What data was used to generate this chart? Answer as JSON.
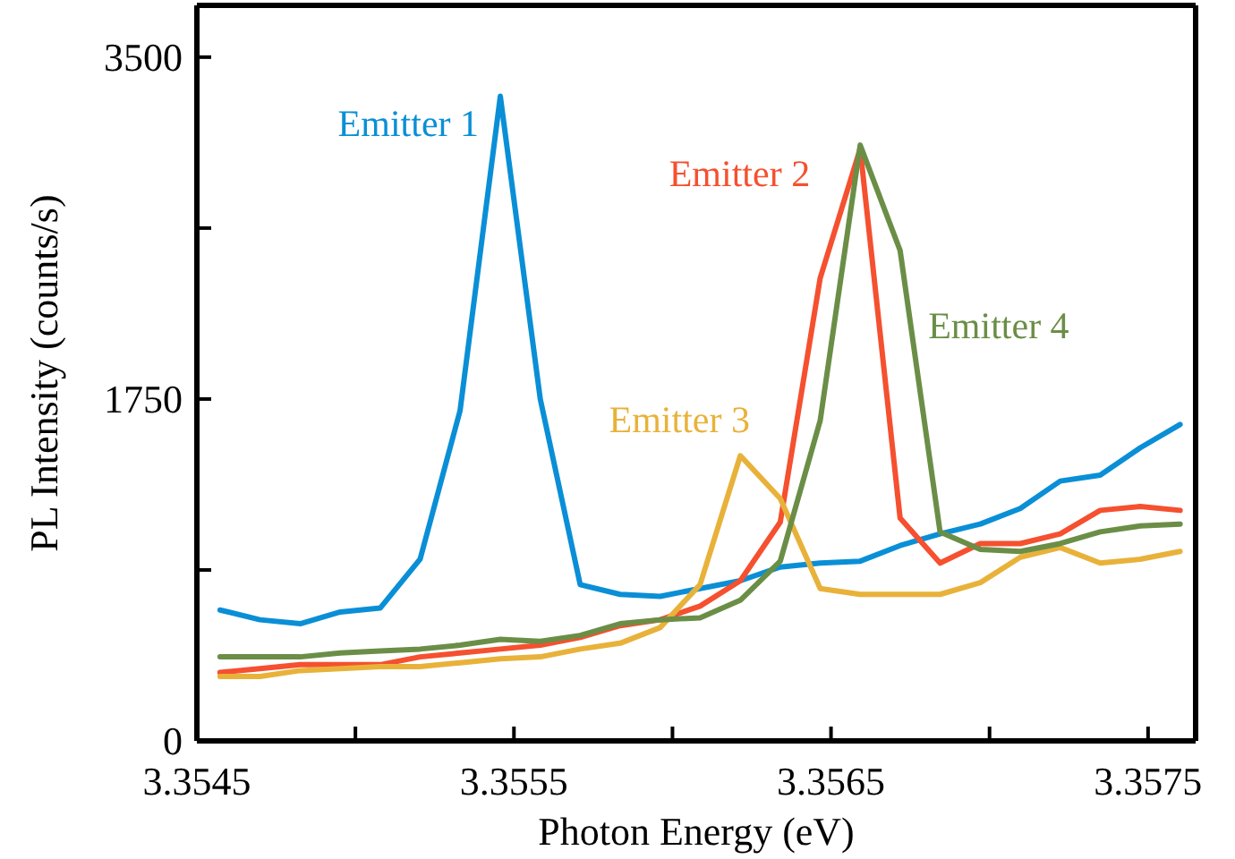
{
  "chart_data": {
    "type": "line",
    "xlabel": "Photon Energy (eV)",
    "ylabel": "PL Intensity (counts/s)",
    "x": [
      3.354573,
      3.354699,
      3.354826,
      3.354952,
      3.355078,
      3.355204,
      3.35533,
      3.355457,
      3.355583,
      3.355709,
      3.355835,
      3.355961,
      3.356087,
      3.356214,
      3.35634,
      3.356466,
      3.356592,
      3.356718,
      3.356844,
      3.356971,
      3.357097,
      3.357223,
      3.357349,
      3.357475,
      3.357601
    ],
    "series": [
      {
        "name": "Emitter 1",
        "color": "#0a8fd6",
        "values": [
          670,
          620,
          600,
          660,
          680,
          930,
          1690,
          3300,
          1750,
          800,
          750,
          740,
          780,
          820,
          890,
          910,
          920,
          1000,
          1060,
          1110,
          1190,
          1330,
          1360,
          1500,
          1620
        ]
      },
      {
        "name": "Emitter 2",
        "color": "#f5502f",
        "values": [
          350,
          370,
          390,
          390,
          390,
          430,
          450,
          470,
          490,
          530,
          590,
          620,
          690,
          820,
          1120,
          2370,
          3030,
          1140,
          910,
          1010,
          1010,
          1060,
          1180,
          1200,
          1180
        ]
      },
      {
        "name": "Emitter 3",
        "color": "#e8b23a",
        "values": [
          330,
          330,
          360,
          370,
          380,
          380,
          400,
          420,
          430,
          470,
          500,
          580,
          800,
          1460,
          1240,
          780,
          750,
          750,
          750,
          810,
          940,
          990,
          910,
          930,
          970
        ]
      },
      {
        "name": "Emitter 4",
        "color": "#6b8e47",
        "values": [
          430,
          430,
          430,
          450,
          460,
          470,
          490,
          520,
          510,
          540,
          600,
          620,
          630,
          720,
          920,
          1640,
          3050,
          2510,
          1070,
          980,
          970,
          1010,
          1070,
          1100,
          1110
        ]
      }
    ],
    "xlim": [
      3.3545,
      3.35765
    ],
    "xticks": [
      3.3545,
      {
        "value": 3.355,
        "label": null
      },
      3.3555,
      {
        "value": 3.356,
        "label": null
      },
      3.3565,
      {
        "value": 3.357,
        "label": null
      },
      3.3575
    ],
    "ylim": [
      0,
      3765
    ],
    "yticks": [
      0,
      {
        "value": 875,
        "label": null
      },
      1750,
      {
        "value": 2625,
        "label": null
      },
      3500
    ],
    "grid": false,
    "marker": "none",
    "line_style": "solid"
  }
}
